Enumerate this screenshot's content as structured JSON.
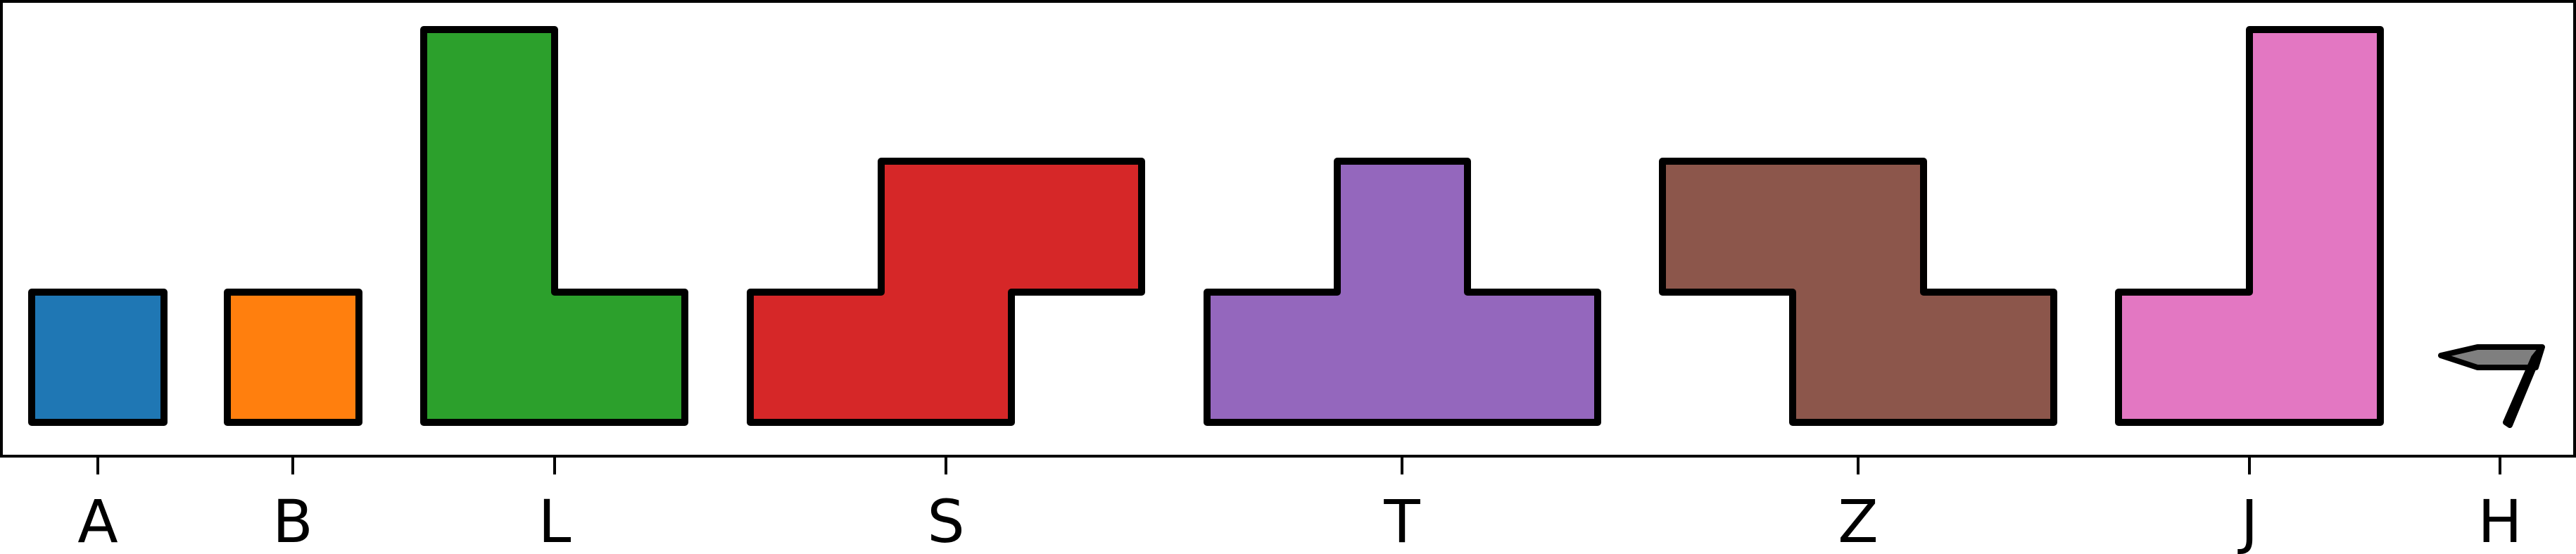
{
  "pieces": [
    {
      "label": "A",
      "name": "piece-a",
      "color": "#1f77b4"
    },
    {
      "label": "B",
      "name": "piece-b",
      "color": "#ff7f0e"
    },
    {
      "label": "L",
      "name": "piece-l",
      "color": "#2ca02c"
    },
    {
      "label": "S",
      "name": "piece-s",
      "color": "#d62728"
    },
    {
      "label": "T",
      "name": "piece-t",
      "color": "#9467bd"
    },
    {
      "label": "Z",
      "name": "piece-z",
      "color": "#8c564b"
    },
    {
      "label": "J",
      "name": "piece-j",
      "color": "#e377c2"
    },
    {
      "label": "H",
      "name": "piece-h",
      "color": "#7f7f7f"
    }
  ]
}
